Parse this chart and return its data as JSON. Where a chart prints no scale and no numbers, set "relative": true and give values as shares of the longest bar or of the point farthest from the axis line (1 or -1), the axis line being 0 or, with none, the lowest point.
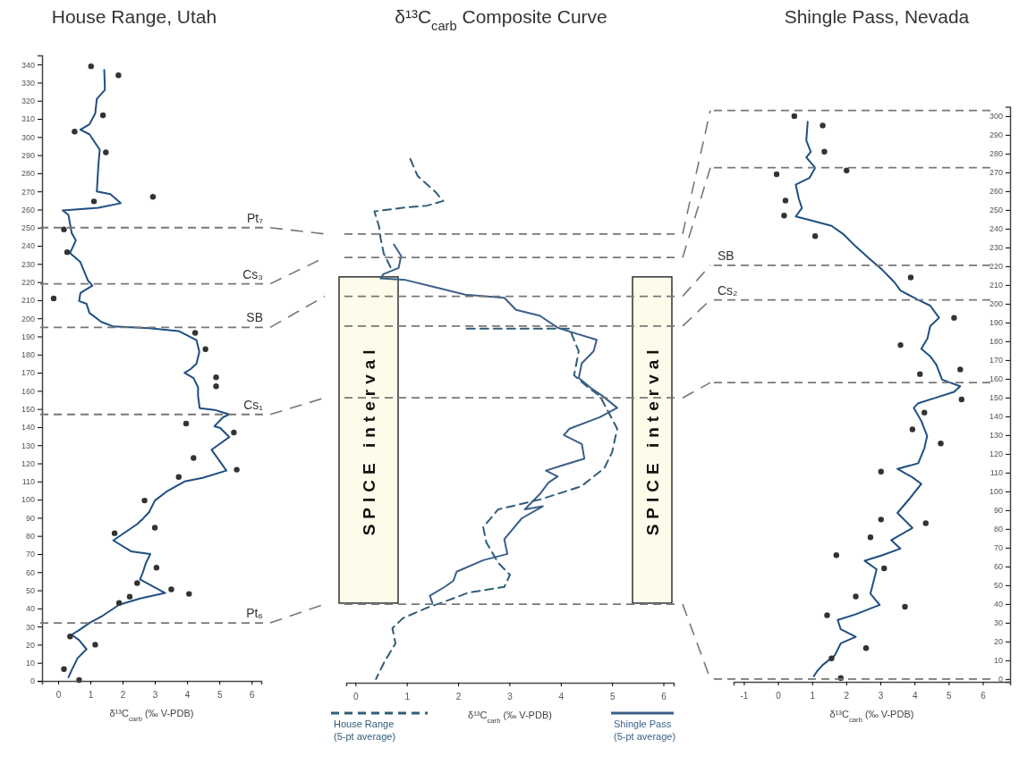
{
  "chart_data": [
    {
      "type": "line",
      "title": "House Range, Utah",
      "xlabel": "δ¹³C$_{carb}$ (‰ V-PDB)",
      "xlim": [
        -0.5,
        6.3
      ],
      "xticks": [
        0,
        1,
        2,
        3,
        4,
        5,
        6
      ],
      "ylim": [
        0,
        345
      ],
      "yticks": [
        0,
        10,
        20,
        30,
        40,
        50,
        60,
        70,
        80,
        90,
        100,
        110,
        120,
        130,
        140,
        150,
        160,
        170,
        180,
        190,
        200,
        210,
        220,
        230,
        240,
        250,
        260,
        270,
        280,
        290,
        300,
        310,
        320,
        330,
        340
      ],
      "grid": false,
      "legend": false,
      "series": [
        {
          "type": "line",
          "color": "#1f4f82",
          "line_style": "solid",
          "marker": "none",
          "x": [
            1.43,
            1.45,
            1.2,
            1.15,
            0.97,
            0.69,
            0.97,
            1.29,
            1.25,
            1.2,
            1.62,
            1.94,
            1.25,
            0.14,
            0.32,
            0.42,
            0.55,
            0.37,
            0.69,
            0.92,
            1.06,
            0.69,
            0.65,
            0.88,
            0.97,
            1.34,
            1.71,
            2.82,
            3.74,
            4.29,
            4.38,
            4.29,
            4.11,
            3.92,
            4.2,
            4.34,
            4.34,
            4.39,
            4.85,
            5.31,
            5.12,
            4.85,
            5.03,
            5.31,
            4.76,
            5.22,
            4.48,
            3.92,
            3.37,
            3.0,
            2.82,
            2.63,
            2.45,
            1.71,
            2.26,
            2.86,
            2.72,
            2.63,
            2.54,
            3.32,
            2.54,
            1.89,
            1.34,
            0.97,
            0.65,
            0.42,
            0.65,
            0.88,
            0.6,
            0.42,
            0.32
          ],
          "values": [
            337,
            326,
            321,
            313,
            307,
            304,
            301.5,
            293,
            285,
            270,
            268.5,
            263.5,
            261,
            259.5,
            257,
            247,
            243,
            236,
            231,
            221,
            218,
            214,
            209.5,
            208,
            203,
            198,
            195.5,
            194.5,
            193,
            188,
            181.5,
            175,
            172,
            170,
            167,
            162,
            157,
            150.5,
            149.5,
            147,
            145.5,
            140.5,
            139.5,
            134.5,
            127.5,
            116,
            112,
            110,
            104.5,
            99.5,
            93,
            89.5,
            86.5,
            77.5,
            71.5,
            70,
            65,
            60,
            56,
            48.5,
            45.5,
            42,
            35.5,
            32,
            28,
            25.5,
            22.5,
            17.5,
            12.5,
            6,
            2
          ]
        },
        {
          "type": "scatter",
          "color": "#333333",
          "marker": "circle",
          "x": [
            1.02,
            1.87,
            1.39,
            0.51,
            1.48,
            2.94,
            1.11,
            0.18,
            0.28,
            -0.14,
            4.25,
            4.57,
            4.9,
            4.9,
            3.97,
            5.45,
            4.2,
            5.54,
            3.74,
            2.68,
            1.75,
            3.0,
            3.05,
            2.45,
            3.51,
            4.06,
            2.22,
            1.89,
            0.37,
            1.15,
            0.18,
            0.65
          ],
          "values": [
            339,
            334,
            312,
            303,
            291.5,
            267,
            264.5,
            249,
            236.5,
            211,
            192,
            183,
            167.5,
            162.5,
            142,
            137,
            123,
            116.5,
            112.5,
            99.5,
            81.5,
            84.5,
            62.5,
            54,
            50.5,
            48,
            46.5,
            43,
            24.5,
            20,
            6.5,
            0.5
          ]
        }
      ],
      "ref_lines": [
        {
          "axis": "y",
          "value": 250,
          "label": "Pt₇",
          "color": "#777777",
          "line_style": "dashed"
        },
        {
          "axis": "y",
          "value": 219,
          "label": "Cs₃",
          "color": "#777777",
          "line_style": "dashed"
        },
        {
          "axis": "y",
          "value": 195,
          "label": "SB",
          "color": "#777777",
          "line_style": "dashed"
        },
        {
          "axis": "y",
          "value": 147,
          "label": "Cs₁",
          "color": "#777777",
          "line_style": "dashed"
        },
        {
          "axis": "y",
          "value": 32,
          "label": "Pt₆",
          "color": "#777777",
          "line_style": "dashed"
        }
      ]
    },
    {
      "type": "line",
      "title": "δ¹³C$_{carb}$ Composite Curve",
      "xlabel": "δ¹³C$_{carb}$ (‰ V-PDB)",
      "xlim": [
        -0.18,
        6.2
      ],
      "xticks": [
        0,
        1,
        2,
        3,
        4,
        5,
        6
      ],
      "relative": true,
      "grid": false,
      "legend": "bottom",
      "series": [
        {
          "name": "House Range (5-pt average)",
          "type": "line",
          "color": "#2f5d78",
          "line_style": "dashed",
          "marker": "none",
          "x": [
            1.07,
            1.21,
            1.56,
            1.71,
            1.39,
            0.92,
            0.37,
            0.46,
            0.49,
            0.55,
            0.7,
            null,
            2.17,
            4.17,
            4.35,
            4.26,
            4.52,
            4.76,
            5.1,
            5.0,
            4.85,
            4.4,
            3.6,
            2.78,
            2.49,
            2.55,
            2.78,
            3.01,
            2.9,
            2.2,
            1.74,
            1.39,
            0.92,
            0.72,
            0.78,
            0.57,
            0.4
          ],
          "values": [
            1,
            0.968,
            0.937,
            0.92,
            0.911,
            0.907,
            0.9,
            0.871,
            0.849,
            0.82,
            0.79,
            null,
            0.676,
            0.676,
            0.633,
            0.587,
            0.565,
            0.548,
            0.485,
            0.44,
            0.41,
            0.375,
            0.35,
            0.331,
            0.297,
            0.268,
            0.229,
            0.206,
            0.183,
            0.172,
            0.155,
            0.143,
            0.123,
            0.104,
            0.075,
            0.041,
            0.007
          ]
        },
        {
          "name": "Shingle Pass (5-pt average)",
          "type": "line",
          "color": "#3a5f8a",
          "line_style": "solid",
          "marker": "none",
          "x": [
            0.75,
            0.89,
            0.84,
            0.54,
            0.49,
            0.98,
            1.56,
            2.14,
            2.9,
            3.13,
            3.59,
            3.94,
            4.29,
            4.7,
            4.64,
            4.41,
            4.35,
            4.64,
            4.81,
            5.1,
            4.76,
            4.17,
            4.06,
            4.41,
            4.46,
            4.06,
            3.71,
            3.94,
            3.76,
            3.59,
            3.3,
            3.65,
            3.24,
            2.9,
            2.96,
            2.49,
            1.97,
            1.91,
            1.74,
            1.45,
            1.5
          ],
          "values": [
            0.837,
            0.815,
            0.792,
            0.78,
            0.772,
            0.769,
            0.755,
            0.741,
            0.735,
            0.712,
            0.701,
            0.678,
            0.667,
            0.655,
            0.633,
            0.61,
            0.582,
            0.559,
            0.548,
            0.525,
            0.507,
            0.485,
            0.473,
            0.456,
            0.428,
            0.416,
            0.405,
            0.394,
            0.382,
            0.36,
            0.331,
            0.337,
            0.314,
            0.274,
            0.246,
            0.234,
            0.212,
            0.195,
            0.183,
            0.166,
            0.152
          ]
        }
      ],
      "ref_lines": [
        {
          "axis": "y",
          "value": 0.857,
          "label": null,
          "color": "#777777",
          "line_style": "dashed"
        },
        {
          "axis": "y",
          "value": 0.812,
          "label": null,
          "color": "#777777",
          "line_style": "dashed"
        },
        {
          "axis": "y",
          "value": 0.738,
          "label": null,
          "color": "#777777",
          "line_style": "dashed"
        },
        {
          "axis": "y",
          "value": 0.681,
          "label": null,
          "color": "#777777",
          "line_style": "dashed"
        },
        {
          "axis": "y",
          "value": 0.544,
          "label": null,
          "color": "#777777",
          "line_style": "dashed"
        },
        {
          "axis": "y",
          "value": 0.15,
          "label": null,
          "color": "#777777",
          "line_style": "dashed"
        }
      ],
      "bands": [
        {
          "axis": "y",
          "from": 0.152,
          "to": 0.775,
          "label": "SPICE interval",
          "color": "#fffbea"
        }
      ]
    },
    {
      "type": "line",
      "title": "Shingle Pass, Nevada",
      "xlabel": "δ¹³C$_{carb}$ (‰ V-PDB)",
      "xlim": [
        -1.3,
        6.8
      ],
      "xticks": [
        -1,
        0,
        1,
        2,
        3,
        4,
        5,
        6
      ],
      "y2lim": [
        -1.5,
        305
      ],
      "y2ticks": [
        0,
        10,
        20,
        30,
        40,
        50,
        60,
        70,
        80,
        90,
        100,
        110,
        120,
        130,
        140,
        150,
        160,
        170,
        180,
        190,
        200,
        210,
        220,
        230,
        240,
        250,
        260,
        270,
        280,
        290,
        300
      ],
      "grid": false,
      "legend": false,
      "series": [
        {
          "type": "line",
          "axis": "y2",
          "color": "#1f4f82",
          "line_style": "solid",
          "marker": "none",
          "x": [
            0.87,
            0.83,
            0.96,
            0.83,
            1.09,
            0.92,
            0.52,
            0.61,
            0.7,
            0.52,
            0.96,
            1.57,
            1.92,
            2.28,
            2.71,
            3.06,
            3.41,
            3.59,
            4.11,
            4.46,
            4.72,
            4.46,
            4.38,
            4.2,
            4.46,
            4.64,
            4.81,
            5.34,
            5.16,
            4.64,
            4.11,
            3.98,
            4.2,
            4.37,
            4.29,
            4.11,
            3.5,
            3.94,
            4.2,
            3.85,
            3.5,
            3.94,
            3.32,
            3.59,
            3.06,
            2.54,
            2.89,
            2.71,
            2.98,
            2.28,
            1.75,
            1.84,
            2.28,
            1.84,
            1.66,
            1.31,
            1.14,
            1.05
          ],
          "values": [
            297,
            287,
            281,
            278,
            272.5,
            267,
            263.5,
            256,
            251,
            246.5,
            244.5,
            241.5,
            237,
            230.5,
            223.5,
            218,
            211.5,
            207,
            202,
            199,
            192.5,
            188,
            181.5,
            176,
            172,
            167.5,
            159.5,
            156,
            153,
            150,
            147,
            144.5,
            137.5,
            129.5,
            123,
            115,
            112,
            107.5,
            104,
            96,
            88.5,
            80.5,
            74,
            69.5,
            66,
            63,
            58.5,
            45.5,
            39.5,
            34.5,
            31.5,
            26.5,
            22.5,
            19,
            12.5,
            7.5,
            4,
            1.5
          ]
        },
        {
          "type": "scatter",
          "axis": "y2",
          "color": "#333333",
          "marker": "circle",
          "x": [
            0.48,
            1.31,
            1.36,
            -0.04,
            2.01,
            0.22,
            0.18,
            1.09,
            3.89,
            3.59,
            5.16,
            4.16,
            5.34,
            5.38,
            4.29,
            3.94,
            4.77,
            3.02,
            4.33,
            3.02,
            2.71,
            1.71,
            3.11,
            2.28,
            3.72,
            1.44,
            2.58,
            1.57,
            1.84
          ],
          "values": [
            300,
            295,
            281,
            269,
            271,
            255,
            247,
            236,
            214,
            178,
            192.5,
            162.5,
            165,
            149,
            142,
            133,
            125.5,
            110.5,
            83,
            85,
            75.5,
            66,
            59,
            44,
            38.5,
            34,
            16.5,
            11,
            0.5
          ]
        }
      ],
      "ref_lines": [
        {
          "axis": "y2",
          "value": 303,
          "label": null,
          "color": "#777777",
          "line_style": "dashed"
        },
        {
          "axis": "y2",
          "value": 272.5,
          "label": null,
          "color": "#777777",
          "line_style": "dashed"
        },
        {
          "axis": "y2",
          "value": 220.5,
          "label": "SB",
          "color": "#777777",
          "line_style": "dashed"
        },
        {
          "axis": "y2",
          "value": 202,
          "label": "Cs₂",
          "color": "#777777",
          "line_style": "dashed"
        },
        {
          "axis": "y2",
          "value": 158,
          "label": null,
          "color": "#777777",
          "line_style": "dashed"
        },
        {
          "axis": "y2",
          "value": 0,
          "label": null,
          "color": "#777777",
          "line_style": "dashed"
        }
      ]
    }
  ]
}
